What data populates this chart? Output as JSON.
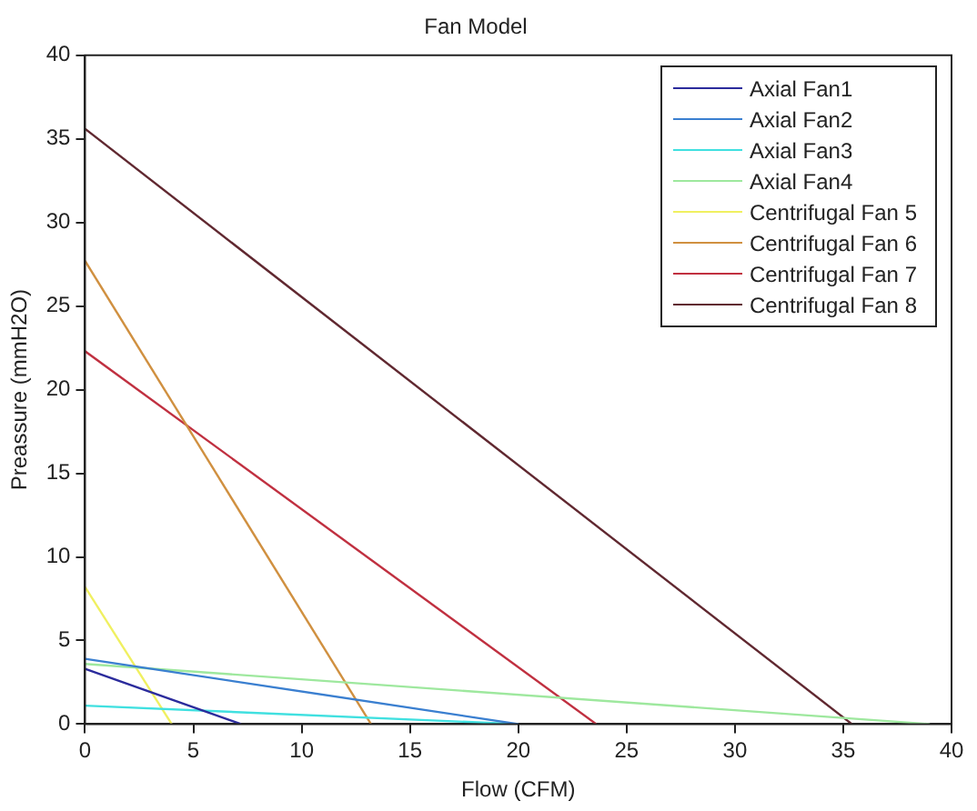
{
  "chart_data": {
    "type": "line",
    "title": "Fan Model",
    "xlabel": "Flow (CFM)",
    "ylabel": "Preassure (mmH2O)",
    "xlim": [
      0,
      40
    ],
    "ylim": [
      0,
      40
    ],
    "xticks": [
      0,
      5,
      10,
      15,
      20,
      25,
      30,
      35,
      40
    ],
    "yticks": [
      0,
      5,
      10,
      15,
      20,
      25,
      30,
      35,
      40
    ],
    "grid": false,
    "legend": "top right",
    "marker": "none",
    "series": [
      {
        "name": "Axial Fan1",
        "color": "#2b2b9c",
        "x": [
          0,
          7.2
        ],
        "values": [
          3.3,
          0
        ]
      },
      {
        "name": "Axial Fan2",
        "color": "#3a7fd0",
        "x": [
          0,
          20
        ],
        "values": [
          3.9,
          0
        ]
      },
      {
        "name": "Axial Fan3",
        "color": "#40e0e0",
        "x": [
          0,
          20
        ],
        "values": [
          1.1,
          0
        ]
      },
      {
        "name": "Axial Fan4",
        "color": "#9ee89e",
        "x": [
          0,
          39
        ],
        "values": [
          3.6,
          0
        ]
      },
      {
        "name": "Centrifugal Fan 5",
        "color": "#f0f060",
        "x": [
          0,
          4
        ],
        "values": [
          8.2,
          0
        ]
      },
      {
        "name": "Centrifugal Fan 6",
        "color": "#d09040",
        "x": [
          0,
          13.2
        ],
        "values": [
          27.7,
          0
        ]
      },
      {
        "name": "Centrifugal Fan 7",
        "color": "#c03040",
        "x": [
          0,
          23.6
        ],
        "values": [
          22.3,
          0
        ]
      },
      {
        "name": "Centrifugal Fan 8",
        "color": "#602830",
        "x": [
          0,
          35.4
        ],
        "values": [
          35.6,
          0
        ]
      }
    ]
  }
}
